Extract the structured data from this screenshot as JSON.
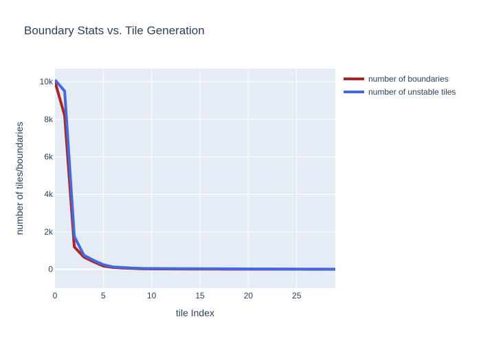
{
  "chart_data": {
    "type": "line",
    "title": "Boundary Stats vs. Tile Generation",
    "xlabel": "tile Index",
    "ylabel": "number of tiles/boundaries",
    "xlim": [
      0,
      29
    ],
    "ylim": [
      -1000,
      10700
    ],
    "x_ticks": [
      0,
      5,
      10,
      15,
      20,
      25
    ],
    "x_tick_labels": [
      "0",
      "5",
      "10",
      "15",
      "20",
      "25"
    ],
    "y_ticks": [
      0,
      2000,
      4000,
      6000,
      8000,
      10000
    ],
    "y_tick_labels": [
      "0",
      "2k",
      "4k",
      "6k",
      "8k",
      "10k"
    ],
    "grid": true,
    "legend_position": "top-right outside plot",
    "series": [
      {
        "name": "number of boundaries",
        "color": "#b22222",
        "x": [
          0,
          1,
          2,
          3,
          4,
          5,
          6,
          7,
          8,
          9,
          10,
          11,
          12,
          13,
          14,
          15,
          16,
          17,
          18,
          19,
          20,
          21,
          22,
          23,
          24,
          25,
          26,
          27,
          28,
          29
        ],
        "values": [
          10000,
          8200,
          1200,
          650,
          400,
          180,
          100,
          70,
          50,
          30,
          25,
          22,
          20,
          18,
          16,
          15,
          14,
          13,
          12,
          11,
          10,
          10,
          9,
          9,
          8,
          8,
          7,
          7,
          6,
          6
        ]
      },
      {
        "name": "number of unstable tiles",
        "color": "#4169e1",
        "x": [
          0,
          1,
          2,
          3,
          4,
          5,
          6,
          7,
          8,
          9,
          10,
          11,
          12,
          13,
          14,
          15,
          16,
          17,
          18,
          19,
          20,
          21,
          22,
          23,
          24,
          25,
          26,
          27,
          28,
          29
        ],
        "values": [
          10100,
          9500,
          1750,
          750,
          480,
          250,
          130,
          100,
          70,
          50,
          45,
          42,
          40,
          38,
          36,
          35,
          33,
          31,
          30,
          28,
          26,
          24,
          22,
          20,
          18,
          16,
          15,
          14,
          13,
          12
        ]
      }
    ]
  }
}
